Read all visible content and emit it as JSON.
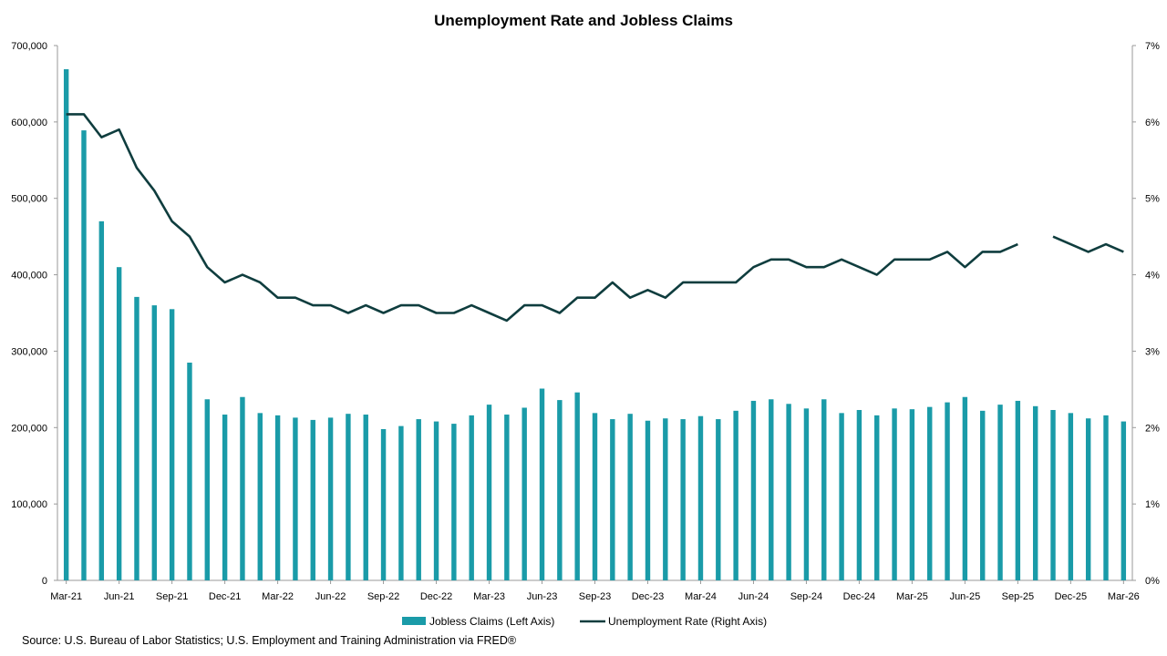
{
  "chart_data": {
    "type": "bar+line",
    "title": "Unemployment Rate and Jobless Claims",
    "x_tick_labels": [
      "Mar-21",
      "Jun-21",
      "Sep-21",
      "Dec-21",
      "Mar-22",
      "Jun-22",
      "Sep-22",
      "Dec-22",
      "Mar-23",
      "Jun-23",
      "Sep-23",
      "Dec-23",
      "Mar-24",
      "Jun-24",
      "Sep-24",
      "Dec-24",
      "Mar-25",
      "Jun-25",
      "Sep-25",
      "Dec-25",
      "Mar-26"
    ],
    "x_start": "Mar-21",
    "y_left_ticks": [
      "0",
      "100,000",
      "200,000",
      "300,000",
      "400,000",
      "500,000",
      "600,000",
      "700,000"
    ],
    "y_left_lim": [
      0,
      700000
    ],
    "y_right_ticks": [
      "0%",
      "1%",
      "2%",
      "3%",
      "4%",
      "5%",
      "6%",
      "7%"
    ],
    "y_right_lim": [
      0,
      7
    ],
    "series": [
      {
        "name": "Jobless Claims (Left Axis)",
        "type": "bar",
        "axis": "left",
        "color": "#1A9BA8",
        "values": [
          669000,
          589000,
          470000,
          410000,
          371000,
          360000,
          355000,
          285000,
          237000,
          217000,
          240000,
          219000,
          216000,
          213000,
          210000,
          213000,
          218000,
          217000,
          198000,
          202000,
          211000,
          208000,
          205000,
          216000,
          230000,
          217000,
          226000,
          251000,
          236000,
          246000,
          219000,
          211000,
          218000,
          209000,
          212000,
          211000,
          215000,
          211000,
          222000,
          235000,
          237000,
          231000,
          225000,
          237000,
          219000,
          223000,
          216000,
          225000,
          224000,
          227000,
          233000,
          240000,
          222000,
          230000,
          235000,
          228000,
          223000,
          219000,
          212000,
          216000,
          208000
        ]
      },
      {
        "name": "Unemployment Rate (Right Axis)",
        "type": "line",
        "axis": "right",
        "color": "#0F3D3E",
        "values": [
          6.1,
          6.1,
          5.8,
          5.9,
          5.4,
          5.1,
          4.7,
          4.5,
          4.1,
          3.9,
          4.0,
          3.9,
          3.7,
          3.7,
          3.6,
          3.6,
          3.5,
          3.6,
          3.5,
          3.6,
          3.6,
          3.5,
          3.5,
          3.6,
          3.5,
          3.4,
          3.6,
          3.6,
          3.5,
          3.7,
          3.7,
          3.9,
          3.7,
          3.8,
          3.7,
          3.9,
          3.9,
          3.9,
          3.9,
          4.1,
          4.2,
          4.2,
          4.1,
          4.1,
          4.2,
          4.1,
          4.0,
          4.2,
          4.2,
          4.2,
          4.3,
          4.1,
          4.3,
          4.3,
          4.4,
          null,
          4.5,
          4.4,
          4.3,
          4.4,
          4.3
        ]
      }
    ],
    "legend": {
      "placement": "bottom-center"
    }
  },
  "source": "Source: U.S. Bureau of Labor Statistics; U.S. Employment and Training Administration via FRED®"
}
